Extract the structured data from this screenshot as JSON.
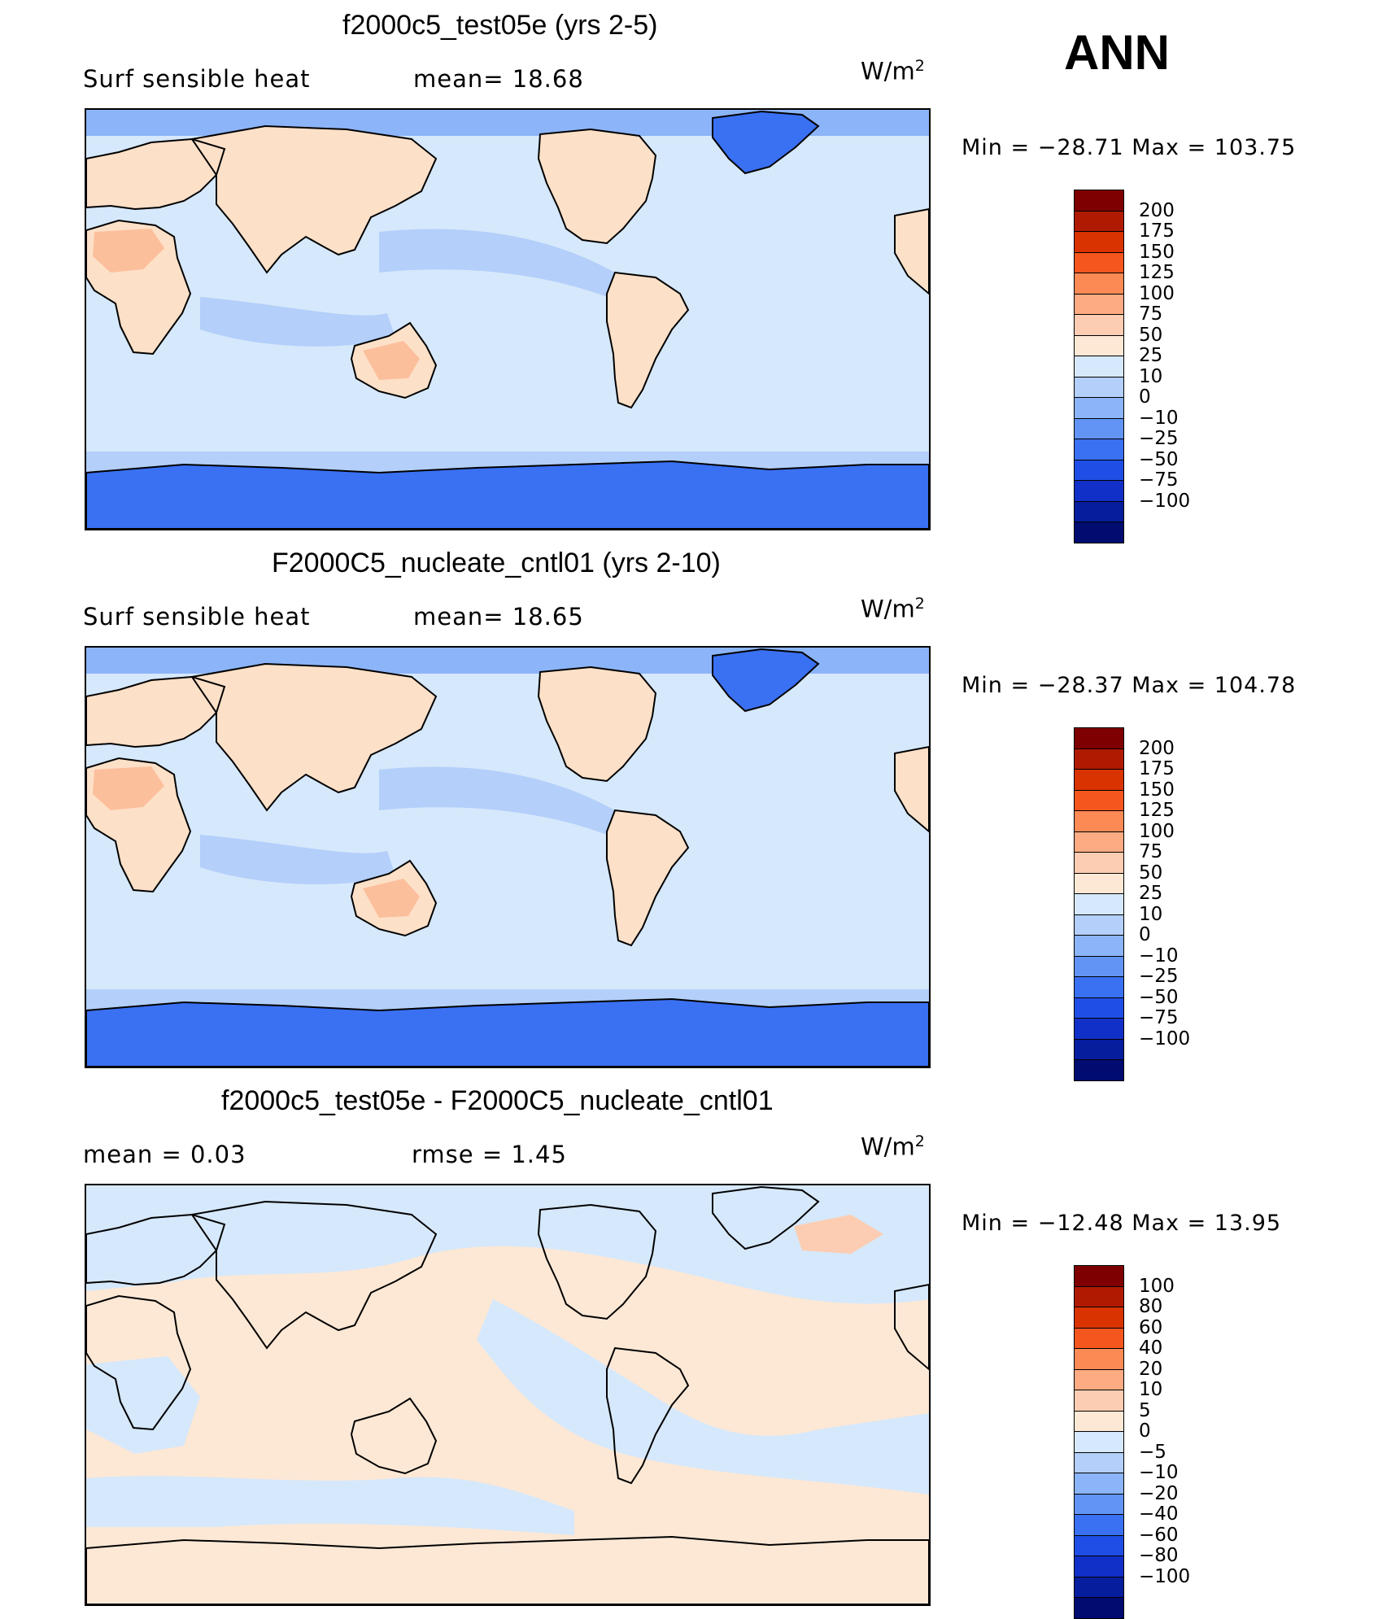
{
  "season": "ANN",
  "panels": [
    {
      "title": "f2000c5_test05e (yrs 2-5)",
      "left_label": "Surf  sensible  heat",
      "mid_label": "mean=   18.68",
      "units": "W/m",
      "units_exp": "2",
      "minmax": "Min  =  −28.71  Max  =  103.75",
      "kind": "field",
      "colorbar": {
        "colors": [
          "#7f0000",
          "#b01a00",
          "#d83300",
          "#f5561e",
          "#fc8a55",
          "#fcab82",
          "#fccdb2",
          "#fde8d5",
          "#d6e8fb",
          "#b3cffa",
          "#8cb4f8",
          "#6294f6",
          "#3a70f2",
          "#1f4ee6",
          "#1030c8",
          "#061d9e",
          "#000c70"
        ],
        "labels": [
          "200",
          "175",
          "150",
          "125",
          "100",
          "75",
          "50",
          "25",
          "10",
          "0",
          "−10",
          "−25",
          "−50",
          "−75",
          "−100"
        ]
      }
    },
    {
      "title": "F2000C5_nucleate_cntl01 (yrs 2-10)",
      "left_label": "Surf  sensible  heat",
      "mid_label": "mean=   18.65",
      "units": "W/m",
      "units_exp": "2",
      "minmax": "Min  =  −28.37  Max  =  104.78",
      "kind": "field",
      "colorbar": {
        "colors": [
          "#7f0000",
          "#b01a00",
          "#d83300",
          "#f5561e",
          "#fc8a55",
          "#fcab82",
          "#fccdb2",
          "#fde8d5",
          "#d6e8fb",
          "#b3cffa",
          "#8cb4f8",
          "#6294f6",
          "#3a70f2",
          "#1f4ee6",
          "#1030c8",
          "#061d9e",
          "#000c70"
        ],
        "labels": [
          "200",
          "175",
          "150",
          "125",
          "100",
          "75",
          "50",
          "25",
          "10",
          "0",
          "−10",
          "−25",
          "−50",
          "−75",
          "−100"
        ]
      }
    },
    {
      "title": "f2000c5_test05e - F2000C5_nucleate_cntl01",
      "left_label": "mean  =      0.03",
      "mid_label": "rmse  =      1.45",
      "units": "W/m",
      "units_exp": "2",
      "minmax": "Min  =  −12.48  Max  =    13.95",
      "kind": "diff",
      "colorbar": {
        "colors": [
          "#7f0000",
          "#b01a00",
          "#d83300",
          "#f5561e",
          "#fc8a55",
          "#fcab82",
          "#fccdb2",
          "#fde8d5",
          "#d6e8fb",
          "#b3cffa",
          "#8cb4f8",
          "#6294f6",
          "#3a70f2",
          "#1f4ee6",
          "#1030c8",
          "#061d9e",
          "#000c70"
        ],
        "labels": [
          "100",
          "80",
          "60",
          "40",
          "20",
          "10",
          "5",
          "0",
          "−5",
          "−10",
          "−20",
          "−40",
          "−60",
          "−80",
          "−100"
        ]
      }
    }
  ]
}
